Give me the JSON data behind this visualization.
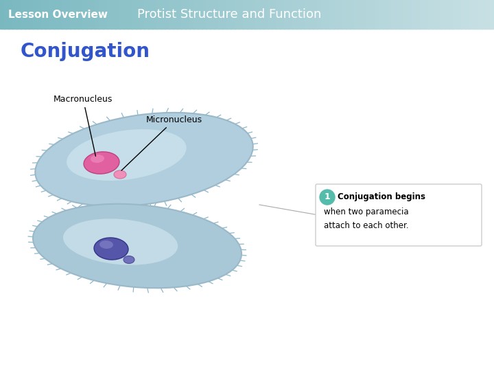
{
  "title_left": "Lesson Overview",
  "title_right": "Protist Structure and Function",
  "subtitle": "Conjugation",
  "header_text_color": "#ffffff",
  "subtitle_color": "#3355cc",
  "bg_color": "#ffffff",
  "paramecium_body_color_top": "#b0cedd",
  "paramecium_body_color_bot": "#a8c8d8",
  "paramecium_border_color": "#9ab8c8",
  "macronucleus_color": "#e060a0",
  "macronucleus_highlight": "#f090c0",
  "micronucleus_color": "#f090b8",
  "micronucleus_edge": "#d070a0",
  "macronucleus2_color": "#5555aa",
  "macronucleus2_edge": "#333388",
  "macronucleus2_highlight": "#8888cc",
  "micronucleus2_color": "#7070bb",
  "micronucleus2_edge": "#505099",
  "annotation_circle_color": "#55bbaa",
  "label_macronucleus": "Macronucleus",
  "label_micronucleus": "Micronucleus",
  "cilia_color": "#8ab8cc",
  "header_color_left": "#7ab8c0",
  "header_color_right": "#c8e0e4"
}
